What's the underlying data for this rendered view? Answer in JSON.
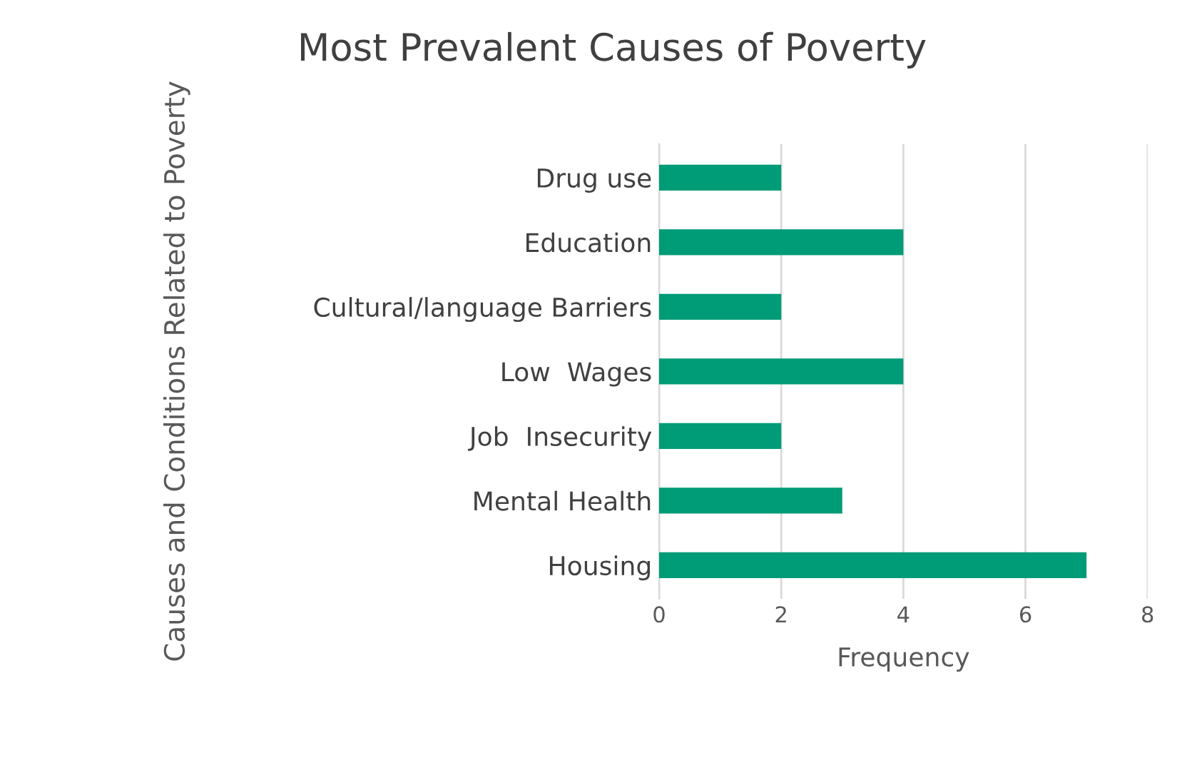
{
  "chart_data": {
    "type": "bar",
    "orientation": "horizontal",
    "title": "Most Prevalent Causes of Poverty",
    "xlabel": "Frequency",
    "ylabel": "Causes and Conditions Related to Poverty",
    "categories": [
      "Drug use",
      "Education",
      "Cultural/language Barriers",
      "Low  Wages",
      "Job  Insecurity",
      "Mental Health",
      "Housing"
    ],
    "values": [
      2,
      4,
      2,
      4,
      2,
      3,
      7
    ],
    "color": "#009b77",
    "xlim": [
      0,
      8
    ],
    "xticks": [
      0,
      2,
      4,
      6,
      8
    ],
    "grid": "x",
    "legend": false
  }
}
